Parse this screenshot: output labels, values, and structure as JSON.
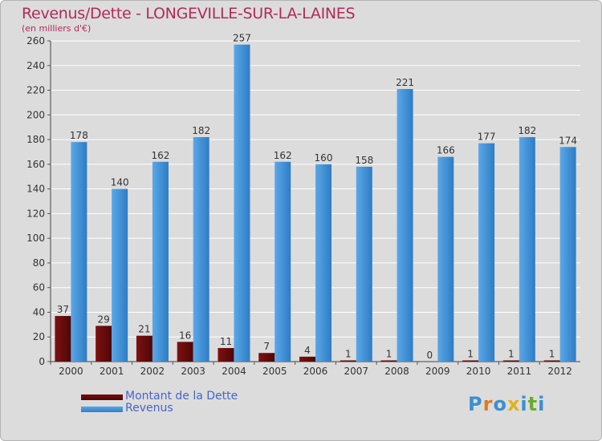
{
  "title": "Revenus/Dette - LONGEVILLE-SUR-LA-LAINES",
  "subtitle": "(en milliers d'€)",
  "logo": {
    "text": "Proxiti"
  },
  "legend": [
    {
      "label": "Montant de la Dette",
      "color": "#6b0a0a"
    },
    {
      "label": "Revenus",
      "color": "#3d8fd9"
    }
  ],
  "chart_data": {
    "type": "bar",
    "categories": [
      "2000",
      "2001",
      "2002",
      "2003",
      "2004",
      "2005",
      "2006",
      "2007",
      "2008",
      "2009",
      "2010",
      "2011",
      "2012"
    ],
    "series": [
      {
        "name": "Montant de la Dette",
        "color": "#6b0a0a",
        "values": [
          37,
          29,
          21,
          16,
          11,
          7,
          4,
          1,
          1,
          0,
          1,
          1,
          1
        ]
      },
      {
        "name": "Revenus",
        "color": "#3d8fd9",
        "values": [
          178,
          140,
          162,
          182,
          257,
          162,
          160,
          158,
          221,
          166,
          177,
          182,
          174
        ]
      }
    ],
    "ylim": [
      0,
      260
    ],
    "yticks": [
      0,
      20,
      40,
      60,
      80,
      100,
      120,
      140,
      160,
      180,
      200,
      220,
      240,
      260
    ],
    "grid": true,
    "legend_position": "bottom"
  }
}
